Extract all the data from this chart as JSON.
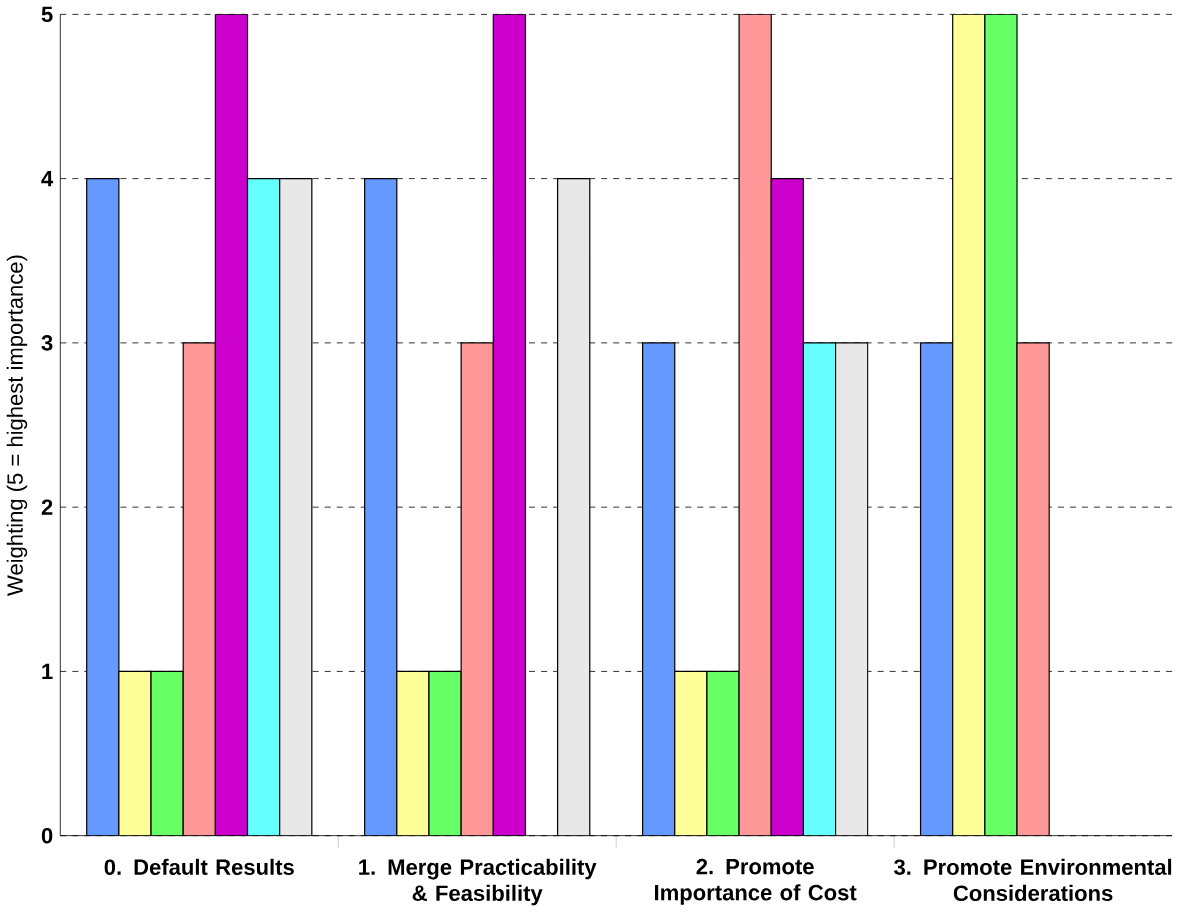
{
  "chart_data": {
    "type": "bar",
    "ylabel": "Weighting (5 = highest importance)",
    "categories": [
      "0.  Default Results",
      "1.  Merge Practicability & Feasibility",
      "2.  Promote Importance of Cost",
      "3.  Promote Environmental Considerations"
    ],
    "series": [
      {
        "color": "#6699ff",
        "values": [
          4,
          4,
          3,
          3
        ]
      },
      {
        "color": "#ffff99",
        "values": [
          1,
          1,
          1,
          5
        ]
      },
      {
        "color": "#66ff66",
        "values": [
          1,
          1,
          1,
          5
        ]
      },
      {
        "color": "#ff9999",
        "values": [
          3,
          3,
          5,
          3
        ]
      },
      {
        "color": "#cc00cc",
        "values": [
          5,
          5,
          4,
          null
        ]
      },
      {
        "color": "#66ffff",
        "values": [
          4,
          null,
          3,
          null
        ]
      },
      {
        "color": "#e8e8e8",
        "values": [
          4,
          4,
          3,
          null
        ]
      }
    ],
    "ylim": [
      0,
      5
    ],
    "yticks": [
      0,
      1,
      2,
      3,
      4,
      5
    ],
    "grid": "y"
  }
}
